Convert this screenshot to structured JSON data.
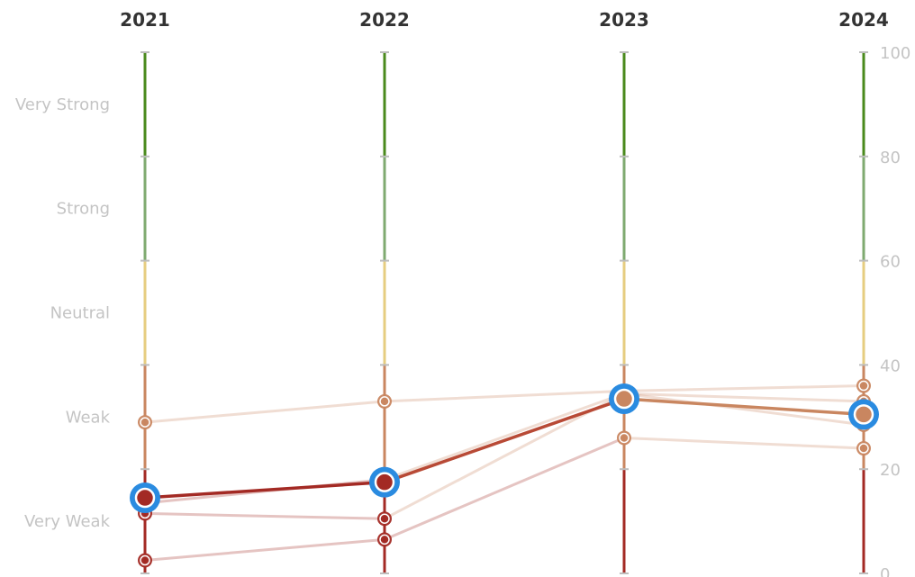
{
  "chart_data": {
    "type": "line",
    "x": [
      "2021",
      "2022",
      "2023",
      "2024"
    ],
    "ylim": [
      0,
      100
    ],
    "yticks": [
      0,
      20,
      40,
      60,
      80,
      100
    ],
    "grid": false,
    "bands": [
      {
        "label": "Very Weak",
        "from": 0,
        "to": 20,
        "color": "#a32a24"
      },
      {
        "label": "Weak",
        "from": 20,
        "to": 40,
        "color": "#c98660"
      },
      {
        "label": "Neutral",
        "from": 40,
        "to": 60,
        "color": "#e6cd80"
      },
      {
        "label": "Strong",
        "from": 60,
        "to": 80,
        "color": "#7faa70"
      },
      {
        "label": "Very Strong",
        "from": 80,
        "to": 100,
        "color": "#4a8a1c"
      }
    ],
    "series": [
      {
        "values": [
          29,
          33,
          35,
          36
        ],
        "highlighted": false
      },
      {
        "values": [
          13.5,
          18,
          34.5,
          33
        ],
        "highlighted": false
      },
      {
        "values": [
          11.5,
          10.5,
          34.5,
          28.5
        ],
        "highlighted": false
      },
      {
        "values": [
          2.5,
          6.5,
          26,
          24
        ],
        "highlighted": false
      },
      {
        "values": [
          14.5,
          17.5,
          33.5,
          30.5
        ],
        "highlighted": true
      }
    ]
  }
}
